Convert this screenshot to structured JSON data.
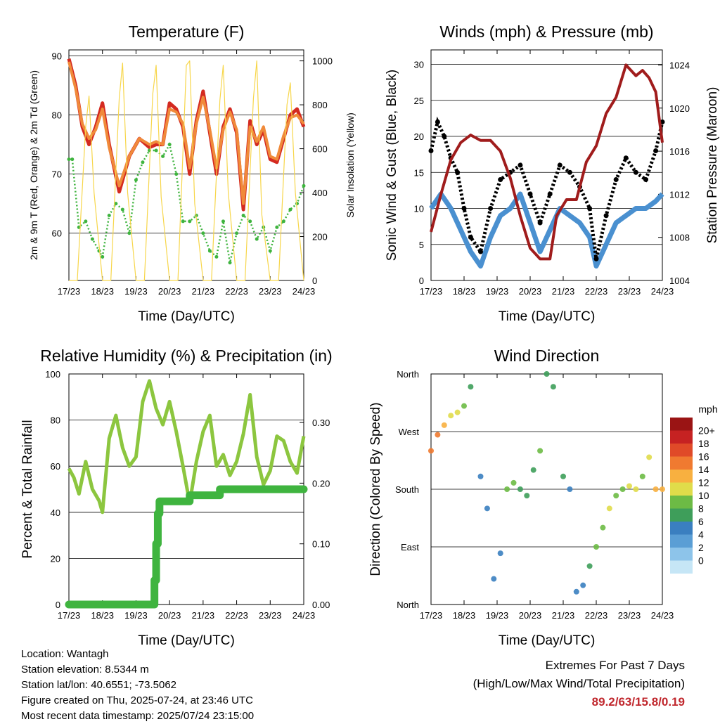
{
  "panels": {
    "temperature": {
      "title": "Temperature (F)",
      "ylabel_left": "2m & 9m T (Red, Orange) & 2m Td (Green)",
      "ylabel_right": "Solar Insolation (Yellow)",
      "xlabel": "Time (Day/UTC)"
    },
    "winds": {
      "title": "Winds (mph) & Pressure (mb)",
      "ylabel_left": "Sonic Wind & Gust (Blue, Black)",
      "ylabel_right": "Station Pressure (Maroon)",
      "xlabel": "Time (Day/UTC)"
    },
    "humidity": {
      "title": "Relative Humidity (%) & Precipitation (in)",
      "ylabel_left": "Percent & Total Rainfall",
      "xlabel": "Time (Day/UTC)"
    },
    "direction": {
      "title": "Wind Direction",
      "ylabel_left": "Direction (Colored By Speed)",
      "xlabel": "Time (Day/UTC)",
      "legend_title": "mph"
    }
  },
  "info": {
    "location": "Location: Wantagh",
    "elevation": "Station elevation: 8.5344 m",
    "latlon": "Station lat/lon: 40.6551; -73.5062",
    "created": "Figure created on Thu, 2025-07-24, at 23:46 UTC",
    "recent": "Most recent data timestamp: 2025/07/24 23:15:00"
  },
  "extremes": {
    "title": "Extremes For Past 7 Days",
    "subtitle": "(High/Low/Max Wind/Total Precipitation)",
    "values": "89.2/63/15.8/0.19"
  },
  "colors": {
    "t2m": "#d42a20",
    "t9m": "#f08a3a",
    "dewpoint": "#3fb43f",
    "solar": "#f7d64a",
    "wind": "#4a90d0",
    "gust": "#000000",
    "pressure": "#a01c1c",
    "rh": "#8cc63f",
    "precip": "#3fb43f"
  },
  "chart_data": [
    {
      "type": "line",
      "title": "Temperature (F)",
      "xlabel": "Time (Day/UTC)",
      "x_ticks": [
        "17/23",
        "18/23",
        "19/23",
        "20/23",
        "21/23",
        "22/23",
        "23/23",
        "24/23"
      ],
      "xlim": [
        0,
        7
      ],
      "ylim": [
        52,
        91
      ],
      "yticks": [
        60,
        70,
        80,
        90
      ],
      "y2lim": [
        0,
        1050
      ],
      "y2ticks": [
        0,
        200,
        400,
        600,
        800,
        1000
      ],
      "series": [
        {
          "name": "2m T (Red)",
          "x": [
            0,
            0.2,
            0.4,
            0.6,
            0.8,
            1.0,
            1.2,
            1.5,
            1.8,
            2.1,
            2.4,
            2.6,
            2.8,
            3.0,
            3.2,
            3.4,
            3.6,
            3.8,
            4.0,
            4.2,
            4.4,
            4.6,
            4.8,
            5.0,
            5.2,
            5.4,
            5.6,
            5.8,
            6.0,
            6.2,
            6.4,
            6.6,
            6.8,
            7.0
          ],
          "y": [
            89.5,
            85,
            78,
            75,
            78,
            82,
            75,
            67,
            73,
            76,
            74.5,
            75,
            75,
            82,
            81,
            78,
            70,
            79,
            84,
            77,
            70,
            78,
            81,
            77,
            64,
            79,
            75,
            77.5,
            72.5,
            72,
            76,
            80,
            81,
            78
          ]
        },
        {
          "name": "9m T (Orange)",
          "x": [
            0,
            0.2,
            0.4,
            0.6,
            0.8,
            1.0,
            1.2,
            1.5,
            1.8,
            2.1,
            2.4,
            2.6,
            2.8,
            3.0,
            3.2,
            3.4,
            3.6,
            3.8,
            4.0,
            4.2,
            4.4,
            4.6,
            4.8,
            5.0,
            5.2,
            5.4,
            5.6,
            5.8,
            6.0,
            6.2,
            6.4,
            6.6,
            6.8,
            7.0
          ],
          "y": [
            89,
            84.5,
            78.5,
            76,
            77.5,
            81,
            74.5,
            68,
            73,
            76,
            75,
            75.5,
            75,
            81,
            80.5,
            78.5,
            71,
            78.5,
            83,
            77.5,
            71,
            77.5,
            80.5,
            77.5,
            65,
            78,
            75.5,
            78,
            73,
            72.5,
            76.5,
            79.5,
            80,
            78.5
          ]
        },
        {
          "name": "2m Td (Green)",
          "x": [
            0,
            0.1,
            0.3,
            0.5,
            0.7,
            0.9,
            1.0,
            1.2,
            1.4,
            1.6,
            1.8,
            2.0,
            2.2,
            2.4,
            2.6,
            2.8,
            3.0,
            3.2,
            3.4,
            3.6,
            3.8,
            4.0,
            4.2,
            4.4,
            4.6,
            4.8,
            5.0,
            5.2,
            5.4,
            5.6,
            5.8,
            6.0,
            6.2,
            6.4,
            6.6,
            6.8,
            7.0
          ],
          "y": [
            72.5,
            72.5,
            61,
            62,
            59,
            57,
            56,
            63,
            65,
            64,
            60,
            69,
            72,
            74,
            74,
            73,
            75,
            70,
            62,
            62,
            63,
            60,
            57,
            56,
            62,
            55,
            60,
            63,
            62,
            59,
            61,
            57,
            61,
            62,
            64,
            65,
            68
          ]
        },
        {
          "name": "Solar Insolation (Yellow)",
          "axis": "right",
          "x": [
            0,
            0.25,
            0.5,
            0.6,
            0.75,
            1.0,
            1.25,
            1.5,
            1.6,
            1.75,
            2.0,
            2.25,
            2.5,
            2.6,
            2.75,
            3.0,
            3.25,
            3.5,
            3.6,
            3.75,
            4.0,
            4.25,
            4.5,
            4.6,
            4.75,
            5.0,
            5.25,
            5.5,
            5.6,
            5.75,
            6.0,
            6.25,
            6.5,
            6.6,
            6.75,
            7.0
          ],
          "y": [
            0,
            0,
            700,
            840,
            400,
            0,
            0,
            830,
            990,
            400,
            0,
            0,
            850,
            980,
            380,
            0,
            0,
            980,
            1000,
            350,
            0,
            0,
            820,
            980,
            400,
            0,
            0,
            830,
            1000,
            300,
            0,
            0,
            800,
            900,
            400,
            0
          ]
        }
      ]
    },
    {
      "type": "scatter",
      "title": "Winds (mph) & Pressure (mb)",
      "xlabel": "Time (Day/UTC)",
      "x_ticks": [
        "17/23",
        "18/23",
        "19/23",
        "20/23",
        "21/23",
        "22/23",
        "23/23",
        "24/23"
      ],
      "xlim": [
        0,
        7
      ],
      "ylim": [
        0,
        32
      ],
      "yticks": [
        0,
        5,
        10,
        15,
        20,
        25,
        30
      ],
      "y2lim": [
        1004,
        1025.4
      ],
      "y2ticks": [
        1004,
        1008,
        1012,
        1016,
        1020,
        1024
      ],
      "series": [
        {
          "name": "Sonic Wind (Blue)",
          "x": [
            0,
            0.3,
            0.6,
            0.9,
            1.2,
            1.5,
            1.8,
            2.1,
            2.4,
            2.7,
            3.0,
            3.3,
            3.6,
            3.9,
            4.2,
            4.5,
            4.8,
            5.0,
            5.3,
            5.6,
            5.9,
            6.2,
            6.5,
            6.8,
            7.0
          ],
          "y": [
            10,
            12,
            10,
            7,
            4,
            2,
            6,
            9,
            10,
            12,
            8,
            4,
            7,
            10,
            9,
            8,
            6,
            2,
            5,
            8,
            9,
            10,
            10,
            11,
            12
          ]
        },
        {
          "name": "Gust (Black)",
          "x": [
            0,
            0.2,
            0.4,
            0.6,
            0.8,
            1.0,
            1.2,
            1.5,
            1.8,
            2.1,
            2.4,
            2.7,
            3.0,
            3.3,
            3.6,
            3.9,
            4.2,
            4.5,
            4.8,
            5.0,
            5.3,
            5.6,
            5.9,
            6.2,
            6.5,
            6.8,
            7.0
          ],
          "y": [
            18,
            22,
            20,
            17,
            15,
            10,
            6,
            4,
            10,
            14,
            15,
            16,
            12,
            8,
            12,
            16,
            15,
            13,
            10,
            3,
            9,
            14,
            17,
            15,
            14,
            18,
            22
          ]
        },
        {
          "name": "Station Pressure (Maroon)",
          "axis": "right",
          "x": [
            0,
            0.3,
            0.6,
            0.9,
            1.2,
            1.5,
            1.8,
            2.1,
            2.4,
            2.7,
            3.0,
            3.3,
            3.6,
            3.8,
            4.1,
            4.4,
            4.7,
            5.0,
            5.3,
            5.6,
            5.9,
            6.2,
            6.4,
            6.6,
            6.8,
            7.0
          ],
          "y": [
            1008.5,
            1012,
            1015.2,
            1016.8,
            1017.5,
            1017,
            1017,
            1016,
            1013.5,
            1010,
            1007,
            1006,
            1006,
            1010,
            1011.5,
            1011.5,
            1015,
            1016.5,
            1019.5,
            1021,
            1024,
            1023,
            1023.5,
            1022.8,
            1021.5,
            1016.8
          ]
        }
      ]
    },
    {
      "type": "line",
      "title": "Relative Humidity (%) & Precipitation (in)",
      "xlabel": "Time (Day/UTC)",
      "x_ticks": [
        "17/23",
        "18/23",
        "19/23",
        "20/23",
        "21/23",
        "22/23",
        "23/23",
        "24/23"
      ],
      "xlim": [
        0,
        7
      ],
      "ylim": [
        0,
        100
      ],
      "yticks": [
        0,
        20,
        40,
        60,
        80,
        100
      ],
      "y2lim": [
        0,
        0.38
      ],
      "y2ticks": [
        "0.00",
        "0.10",
        "0.20",
        "0.30"
      ],
      "series": [
        {
          "name": "Relative Humidity",
          "x": [
            0,
            0.15,
            0.3,
            0.5,
            0.7,
            0.9,
            1.0,
            1.2,
            1.4,
            1.6,
            1.8,
            2.0,
            2.2,
            2.4,
            2.6,
            2.8,
            3.0,
            3.2,
            3.4,
            3.6,
            3.8,
            4.0,
            4.2,
            4.4,
            4.6,
            4.8,
            5.0,
            5.2,
            5.4,
            5.6,
            5.8,
            6.0,
            6.2,
            6.4,
            6.6,
            6.8,
            7.0
          ],
          "y": [
            59,
            55,
            48,
            62,
            50,
            45,
            40,
            72,
            82,
            68,
            60,
            64,
            88,
            97,
            85,
            78,
            88,
            75,
            60,
            44,
            62,
            75,
            82,
            60,
            65,
            56,
            62,
            74,
            91,
            64,
            52,
            58,
            73,
            71,
            62,
            57,
            73
          ]
        },
        {
          "name": "Precipitation",
          "axis": "right",
          "x": [
            0,
            2.5,
            2.55,
            2.6,
            2.65,
            2.7,
            3.5,
            3.6,
            4.5,
            6.0,
            7.0
          ],
          "y": [
            0,
            0,
            0.04,
            0.1,
            0.15,
            0.17,
            0.17,
            0.18,
            0.19,
            0.19,
            0.19
          ]
        }
      ]
    },
    {
      "type": "scatter",
      "title": "Wind Direction",
      "xlabel": "Time (Day/UTC)",
      "x_ticks": [
        "17/23",
        "18/23",
        "19/23",
        "20/23",
        "21/23",
        "22/23",
        "23/23",
        "24/23"
      ],
      "xlim": [
        0,
        7
      ],
      "ylim": [
        0,
        360
      ],
      "ytick_labels": [
        "North",
        "East",
        "South",
        "West",
        "North"
      ],
      "legend_levels": [
        "0",
        "2",
        "4",
        "6",
        "8",
        "10",
        "12",
        "14",
        "16",
        "18",
        "20+"
      ],
      "legend_colors": [
        "#c6e6f6",
        "#8dc4ea",
        "#5a9ed5",
        "#3a7fc0",
        "#3e9e5a",
        "#6dbb45",
        "#e0dc4a",
        "#f8b040",
        "#f07a30",
        "#e04a28",
        "#c62222",
        "#9a1414"
      ],
      "series": [
        {
          "name": "Direction",
          "x": [
            0,
            0.2,
            0.4,
            0.6,
            0.8,
            1.0,
            1.2,
            1.5,
            1.7,
            1.9,
            2.1,
            2.3,
            2.5,
            2.7,
            2.9,
            3.1,
            3.3,
            3.5,
            3.7,
            4.0,
            4.2,
            4.4,
            4.6,
            4.8,
            5.0,
            5.2,
            5.4,
            5.6,
            5.8,
            6.0,
            6.2,
            6.4,
            6.6,
            6.8,
            7.0
          ],
          "y": [
            240,
            265,
            280,
            295,
            300,
            310,
            340,
            200,
            150,
            40,
            80,
            180,
            190,
            180,
            170,
            210,
            240,
            360,
            340,
            200,
            180,
            20,
            30,
            60,
            90,
            120,
            150,
            170,
            180,
            185,
            180,
            200,
            230,
            180,
            180
          ],
          "speed": [
            14,
            14,
            12,
            11,
            10,
            8,
            6,
            5,
            4,
            4,
            5,
            8,
            9,
            7,
            6,
            7,
            8,
            6,
            6,
            7,
            5,
            4,
            5,
            7,
            8,
            9,
            10,
            8,
            9,
            10,
            10,
            9,
            10,
            12,
            13
          ]
        }
      ]
    }
  ]
}
